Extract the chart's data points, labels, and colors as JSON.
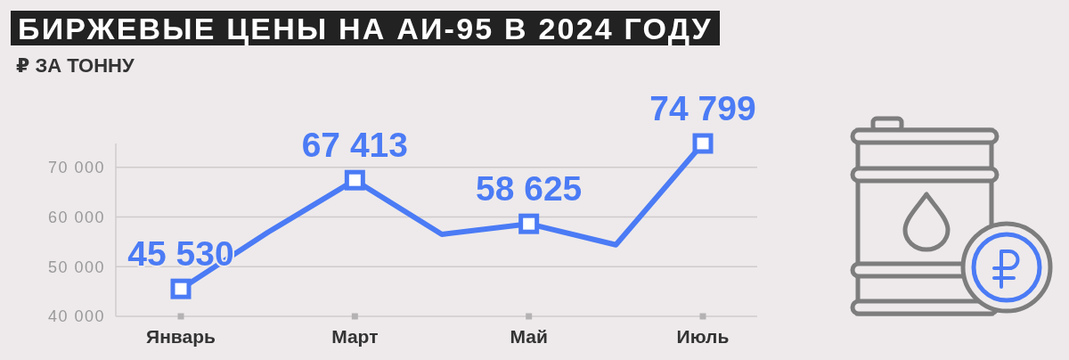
{
  "chart_data": {
    "type": "line",
    "title": "БИРЖЕВЫЕ ЦЕНЫ НА АИ-95 В 2024 ГОДУ",
    "ylabel": "₽ ЗА ТОННУ",
    "categories": [
      "Январь",
      null,
      "Март",
      null,
      "Май",
      null,
      "Июль"
    ],
    "values": [
      45530,
      56900,
      67413,
      56500,
      58625,
      54400,
      74799
    ],
    "color": "#4b7bf5",
    "value_labels": [
      "45 530",
      null,
      "67 413",
      null,
      "58 625",
      null,
      "74 799"
    ],
    "ylim": [
      40000,
      74799
    ],
    "yticks": [
      {
        "value": 40000,
        "label": "40 000"
      },
      {
        "value": 50000,
        "label": "50 000"
      },
      {
        "value": 60000,
        "label": "60 000"
      },
      {
        "value": 70000,
        "label": "70 000"
      }
    ],
    "grid": "y",
    "marker": "square"
  }
}
